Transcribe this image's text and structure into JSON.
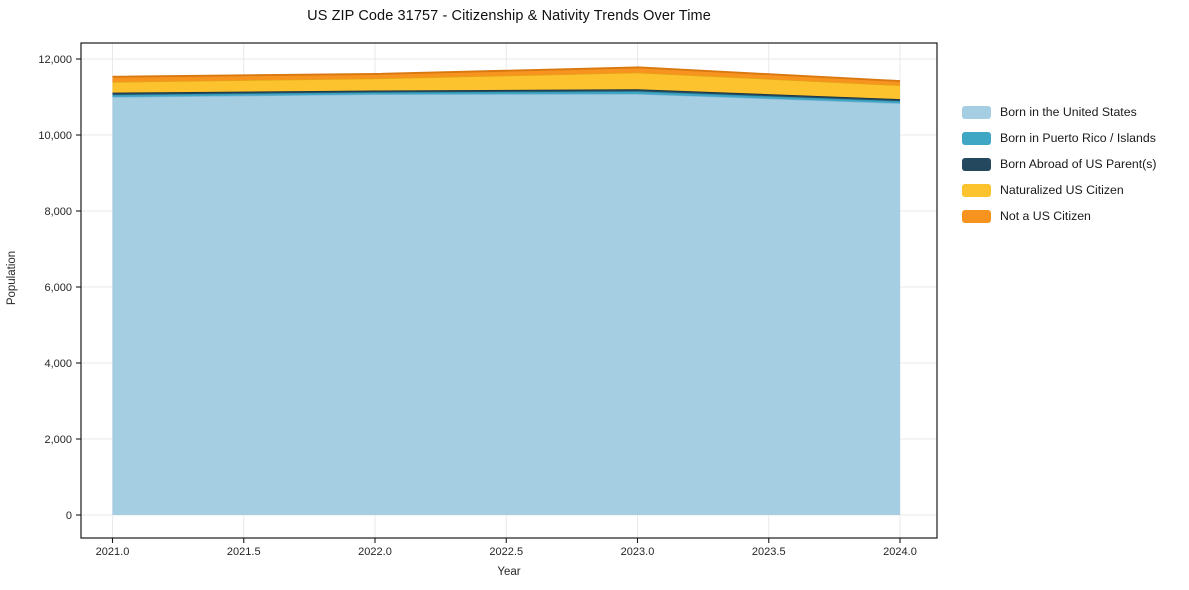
{
  "title": "US ZIP Code 31757 - Citizenship & Nativity Trends Over Time",
  "chart_data": {
    "type": "area",
    "stacked": true,
    "title": "US ZIP Code 31757 - Citizenship & Nativity Trends Over Time",
    "xlabel": "Year",
    "ylabel": "Population",
    "x": [
      2021,
      2022,
      2023,
      2024
    ],
    "series": [
      {
        "name": "Born in the United States",
        "color": "#a5cee3",
        "edge_color": "#7fb5d5",
        "values": [
          11000,
          11070,
          11080,
          10835
        ]
      },
      {
        "name": "Born in Puerto Rico / Islands",
        "color": "#3fa6c3",
        "edge_color": "#2c89a5",
        "values": [
          60,
          55,
          70,
          60
        ]
      },
      {
        "name": "Born Abroad of US Parent(s)",
        "color": "#24485e",
        "edge_color": "#16303f",
        "values": [
          55,
          45,
          55,
          50
        ]
      },
      {
        "name": "Naturalized US Citizen",
        "color": "#fdc32e",
        "edge_color": "#e2a813",
        "values": [
          280,
          315,
          435,
          360
        ]
      },
      {
        "name": "Not a US Citizen",
        "color": "#f79420",
        "edge_color": "#d9780f",
        "values": [
          140,
          120,
          140,
          115
        ]
      }
    ],
    "totals": [
      11535,
      11605,
      11780,
      11420
    ],
    "xlim": [
      2020.88,
      2024.14
    ],
    "ylim": [
      -605,
      12420
    ],
    "xticks": {
      "values": [
        2021.0,
        2021.5,
        2022.0,
        2022.5,
        2023.0,
        2023.5,
        2024.0
      ],
      "labels": [
        "2021.0",
        "2021.5",
        "2022.0",
        "2022.5",
        "2023.0",
        "2023.5",
        "2024.0"
      ]
    },
    "yticks": {
      "values": [
        0,
        2000,
        4000,
        6000,
        8000,
        10000,
        12000
      ],
      "labels": [
        "0",
        "2,000",
        "4,000",
        "6,000",
        "8,000",
        "10,000",
        "12,000"
      ]
    },
    "grid": true,
    "grid_color": "#e9e9e9",
    "spine_color": "#1a1a1a",
    "tick_text_color": "#262626",
    "legend_position": "outside-right"
  }
}
